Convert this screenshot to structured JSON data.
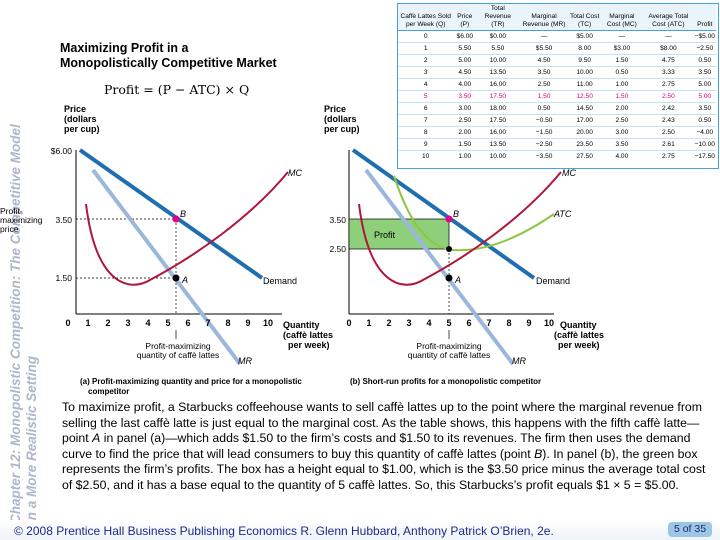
{
  "sidebar": {
    "line1": "Chapter 12:  Monopolistic Competition: The Competitive Model",
    "line2": "in a More Realistic Setting"
  },
  "slide": {
    "title_line1": "Maximizing Profit in a",
    "title_line2": "Monopolistically Competitive Market",
    "formula": "Profit = (P − ATC) × Q"
  },
  "table": {
    "headers": [
      "Caffè Lattes Sold per Week (Q)",
      "Price (P)",
      "Total Revenue (TR)",
      "Marginal Revenue (MR)",
      "Total Cost (TC)",
      "Marginal Cost (MC)",
      "Average Total Cost (ATC)",
      "Profit"
    ],
    "rows": [
      [
        "0",
        "$6.00",
        "$0.00",
        "—",
        "$5.00",
        "—",
        "—",
        "−$5.00"
      ],
      [
        "1",
        "5.50",
        "5.50",
        "$5.50",
        "8.00",
        "$3.00",
        "$8.00",
        "−2.50"
      ],
      [
        "2",
        "5.00",
        "10.00",
        "4.50",
        "9.50",
        "1.50",
        "4.75",
        "0.50"
      ],
      [
        "3",
        "4.50",
        "13.50",
        "3.50",
        "10.00",
        "0.50",
        "3.33",
        "3.50"
      ],
      [
        "4",
        "4.00",
        "16.00",
        "2.50",
        "11.00",
        "1.00",
        "2.75",
        "5.00"
      ],
      [
        "5",
        "3.50",
        "17.50",
        "1.50",
        "12.50",
        "1.50",
        "2.50",
        "5.00"
      ],
      [
        "6",
        "3.00",
        "18.00",
        "0.50",
        "14.50",
        "2.00",
        "2.42",
        "3.50"
      ],
      [
        "7",
        "2.50",
        "17.50",
        "−0.50",
        "17.00",
        "2.50",
        "2.43",
        "0.50"
      ],
      [
        "8",
        "2.00",
        "16.00",
        "−1.50",
        "20.00",
        "3.00",
        "2.50",
        "−4.00"
      ],
      [
        "9",
        "1.50",
        "13.50",
        "−2.50",
        "23.50",
        "3.50",
        "2.61",
        "−10.00"
      ],
      [
        "10",
        "1.00",
        "10.00",
        "−3.50",
        "27.50",
        "4.00",
        "2.75",
        "−17.50"
      ]
    ],
    "highlight_row": 5
  },
  "panel_a": {
    "y_axis_label_1": "Price",
    "y_axis_label_2": "(dollars",
    "y_axis_label_3": "per cup)",
    "y_tick_600": "$6.00",
    "y_tick_350": "3.50",
    "y_tick_150": "1.50",
    "profit_max_label_1": "Profit-",
    "profit_max_label_2": "maximizing",
    "profit_max_label_3": "price",
    "x_ticks": [
      "0",
      "1",
      "2",
      "3",
      "4",
      "5",
      "6",
      "7",
      "8",
      "9",
      "10"
    ],
    "x_axis_label_1": "Quantity",
    "x_axis_label_2": "(caffè lattes",
    "x_axis_label_3": "per week)",
    "mc_label": "MC",
    "demand_label": "Demand",
    "mr_label": "MR",
    "point_a": "A",
    "point_b": "B",
    "q_label_1": "Profit-maximizing",
    "q_label_2": "quantity of caffè lattes",
    "caption_1": "(a) Profit-maximizing quantity and price for a monopolistic",
    "caption_2": "competitor"
  },
  "panel_b": {
    "y_axis_label_1": "Price",
    "y_axis_label_2": "(dollars",
    "y_axis_label_3": "per cup)",
    "y_tick_350": "3.50",
    "y_tick_250": "2.50",
    "x_ticks": [
      "0",
      "1",
      "2",
      "3",
      "4",
      "5",
      "6",
      "7",
      "8",
      "9",
      "10"
    ],
    "x_axis_label_1": "Quantity",
    "x_axis_label_2": "(caffè lattes",
    "x_axis_label_3": "per week)",
    "mc_label": "MC",
    "atc_label": "ATC",
    "demand_label": "Demand",
    "mr_label": "MR",
    "profit_label": "Profit",
    "point_a": "A",
    "point_b": "B",
    "q_label_1": "Profit-maximizing",
    "q_label_2": "quantity of caffè lattes",
    "caption": "(b) Short-run profits for a monopolistic competitor"
  },
  "paragraph": {
    "text_1": "To maximize profit, a Starbucks coffeehouse wants to sell caffè lattes up to the point where the marginal revenue from selling the last caffè latte is just equal to the marginal cost. As the table shows, this happens with the fifth caffè latte—point ",
    "point_a": "A",
    "text_2": " in panel (a)—which adds $1.50 to the firm’s costs and $1.50 to its revenues. The firm then uses the demand curve to find the price that will lead consumers to buy this quantity of caffè lattes (point ",
    "point_b": "B",
    "text_3": "). In panel (b), the green box represents the firm’s profits. The box has a height equal to $1.00, which is the $3.50 price minus the average total cost of $2.50, and it has a base equal to the quantity of 5 caffè lattes. So, this Starbucks’s profit equals $1 × 5 = $5.00."
  },
  "footer": {
    "text": "© 2008 Prentice Hall Business Publishing   Economics  R. Glenn Hubbard, Anthony Patrick O’Brien, 2e.",
    "page": "5 of 35"
  },
  "colors": {
    "demand": "#1f6fb0",
    "mr": "#9bb8dc",
    "mc": "#b0163a",
    "atc": "#8fc641",
    "profit_box": "#8ecf7a",
    "point_b": "#e0008a",
    "sidebar_text": "#aeb6c8"
  }
}
